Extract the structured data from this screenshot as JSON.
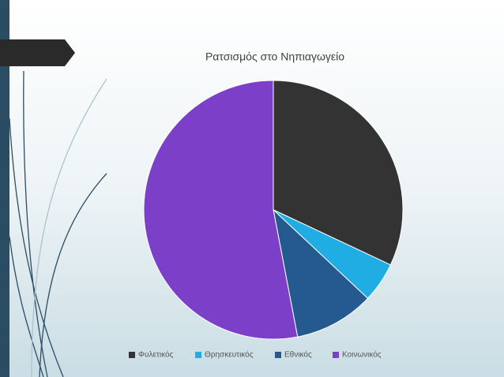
{
  "chart_data": {
    "type": "pie",
    "title": "Ρατσισμός στο Νηπιαγωγείο",
    "categories": [
      "Φυλετικός",
      "Θρησκευτικός",
      "Εθνικός",
      "Κοινωνικός"
    ],
    "values": [
      32,
      5,
      10,
      53
    ],
    "colors": [
      "#333333",
      "#1fade4",
      "#255a91",
      "#7b3fc8"
    ],
    "legend": "bottom"
  }
}
